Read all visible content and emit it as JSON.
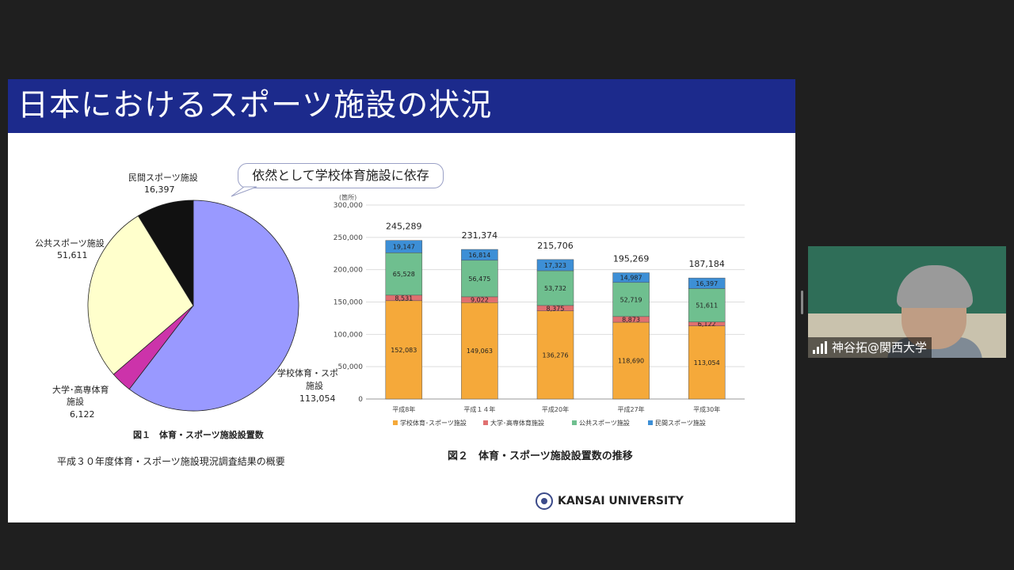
{
  "slide": {
    "title": "日本におけるスポーツ施設の状況",
    "bubble": "依然として学校体育施設に依存",
    "fig1_caption": "図１　体育・スポーツ施設設置数",
    "fig1_sub": "平成３０年度体育・スポーツ施設現況調査結果の概要",
    "fig2_caption": "図２　体育・スポーツ施設設置数の推移",
    "logo_text": "KANSAI UNIVERSITY",
    "pie_labels": {
      "minkan_name": "民間スポーツ施設",
      "minkan_value": "16,397",
      "kokyo_name": "公共スポーツ施設",
      "kokyo_value": "51,611",
      "daigaku_name1": "大学･高専体育",
      "daigaku_name2": "施設",
      "daigaku_value": "6,122",
      "gakko_name1": "学校体育・スポ",
      "gakko_name2": "施設",
      "gakko_value": "113,054"
    }
  },
  "chart_data": [
    {
      "type": "pie",
      "title": "",
      "labels": [
        "学校体育・スポーツ施設",
        "大学･高専体育施設",
        "公共スポーツ施設",
        "民間スポーツ施設"
      ],
      "values": [
        113054,
        6122,
        51611,
        16397
      ],
      "colors": [
        "#9999ff",
        "#cc33aa",
        "#ffffcc",
        "#111111"
      ]
    },
    {
      "type": "bar",
      "stacked": true,
      "unit": "(箇所)",
      "categories": [
        "平成8年",
        "平成１４年",
        "平成20年",
        "平成27年",
        "平成30年"
      ],
      "series": [
        {
          "name": "学校体育･スポーツ施設",
          "values": [
            152083,
            149063,
            136276,
            118690,
            113054
          ],
          "labels": [
            "152,083",
            "149,063",
            "136,276",
            "118,690",
            "113,054"
          ],
          "color": "#f5a93a"
        },
        {
          "name": "大学･高専体育施設",
          "values": [
            8531,
            9022,
            8375,
            8873,
            6122
          ],
          "labels": [
            "8,531",
            "9,022",
            "8,375",
            "8,873",
            "6,122"
          ],
          "color": "#e07070"
        },
        {
          "name": "公共スポーツ施設",
          "values": [
            65528,
            56475,
            53732,
            52719,
            51611
          ],
          "labels": [
            "65,528",
            "56,475",
            "53,732",
            "52,719",
            "51,611"
          ],
          "color": "#6fbf8f"
        },
        {
          "name": "民間スポーツ施設",
          "values": [
            19147,
            16814,
            17323,
            14987,
            16397
          ],
          "labels": [
            "19,147",
            "16,814",
            "17,323",
            "14,987",
            "16,397"
          ],
          "color": "#3d8fd6"
        }
      ],
      "totals": [
        "245,289",
        "231,374",
        "215,706",
        "195,269",
        "187,184"
      ],
      "ylim": [
        0,
        300000
      ],
      "yticks": [
        "0",
        "50,000",
        "100,000",
        "150,000",
        "200,000",
        "250,000",
        "300,000"
      ],
      "grid": true,
      "legend_position": "bottom"
    }
  ],
  "participant": {
    "name": "神谷拓@関西大学"
  }
}
